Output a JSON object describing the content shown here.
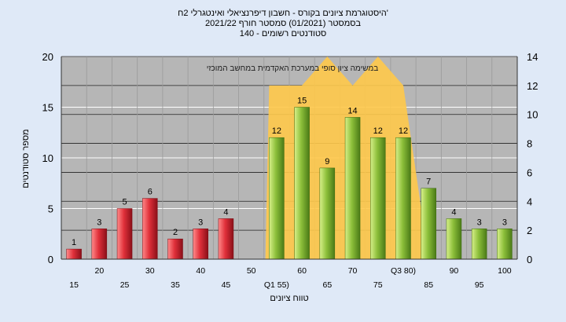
{
  "chart_data": {
    "type": "bar",
    "title_lines": [
      "היסטוגרמת ציונים בקורס - חשבון דיפרנציאלי ואינטגרלי 2ח'",
      "בסמסטר  (01/2021)  סמסטר חורף 2021/22",
      "140 - סטודנטים רשומים"
    ],
    "xlabel": "טווח ציונים",
    "ylabel": "מספר סטודנטים",
    "ylim_left": [
      0,
      20
    ],
    "yticks_left": [
      0,
      5,
      10,
      15,
      20
    ],
    "ylim_right": [
      0,
      14
    ],
    "yticks_right": [
      0,
      2,
      4,
      6,
      8,
      10,
      12,
      14
    ],
    "categories": [
      "15",
      "20",
      "25",
      "30",
      "35",
      "40",
      "45",
      "50",
      "Q1 55)",
      "60",
      "65",
      "70",
      "75",
      "Q3 80)",
      "85",
      "90",
      "95",
      "100"
    ],
    "values": [
      1,
      3,
      5,
      6,
      2,
      3,
      4,
      null,
      12,
      15,
      9,
      14,
      12,
      12,
      7,
      4,
      3,
      3
    ],
    "data_labels": [
      "1",
      "3",
      "5",
      "6",
      "2",
      "3",
      "4",
      "",
      "12",
      "15",
      "9",
      "14",
      "12",
      "12",
      "7",
      "4",
      "3",
      "3"
    ],
    "bar_colors": {
      "below_pass": "#e0303a",
      "pass": "#8cbf3a"
    },
    "pass_from_index": 8,
    "area_band_label": "במשימה    ציון סופי במערכת האקדמית במחשב המוכזי",
    "area_band_color": "#ffc94a",
    "plot_background": "#b6b6b6",
    "grid": true,
    "legend": "none"
  }
}
